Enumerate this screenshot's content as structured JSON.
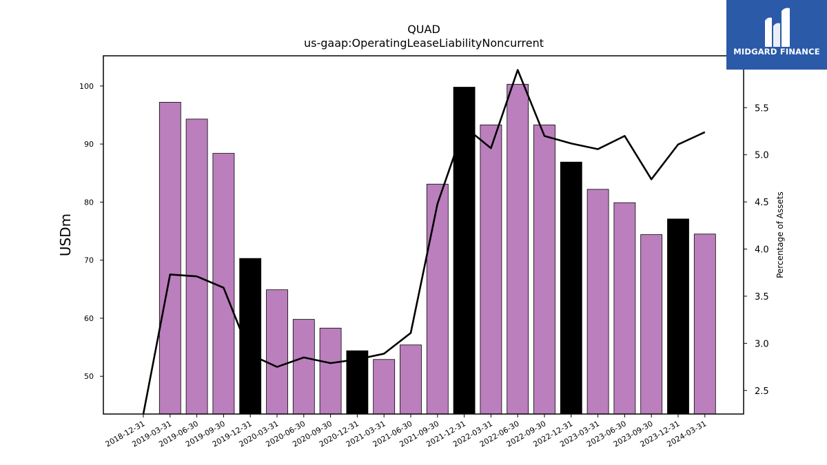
{
  "brand": {
    "name": "MIDGARD FINANCE",
    "bg_color": "#2a5aa8"
  },
  "chart_data": {
    "type": "bar",
    "title": "QUAD",
    "subtitle": "us-gaap:OperatingLeaseLiabilityNoncurrent",
    "ylabel": "USDm",
    "y2label": "Percentage of Assets",
    "ylim": [
      43.5,
      105.2
    ],
    "y2lim": [
      2.25,
      6.05
    ],
    "yticks": [
      50,
      60,
      70,
      80,
      90,
      100
    ],
    "y2ticks": [
      2.5,
      3.0,
      3.5,
      4.0,
      4.5,
      5.0,
      5.5
    ],
    "grid": false,
    "legend": "none",
    "colors": {
      "bar_regular": "#bb7fbd",
      "bar_year_end": "#000000",
      "line": "#000000"
    },
    "categories": [
      "2018-12-31",
      "2019-03-31",
      "2019-06-30",
      "2019-09-30",
      "2019-12-31",
      "2020-03-31",
      "2020-06-30",
      "2020-09-30",
      "2020-12-31",
      "2021-03-31",
      "2021-06-30",
      "2021-09-30",
      "2021-12-31",
      "2022-03-31",
      "2022-06-30",
      "2022-09-30",
      "2022-12-31",
      "2023-03-31",
      "2023-06-30",
      "2023-09-30",
      "2023-12-31",
      "2024-03-31"
    ],
    "series": [
      {
        "type": "bar",
        "values": [
          null,
          97.2,
          94.3,
          88.4,
          70.3,
          64.9,
          59.8,
          58.3,
          54.4,
          52.9,
          55.4,
          83.1,
          99.8,
          93.3,
          100.3,
          93.3,
          86.9,
          82.2,
          79.9,
          74.4,
          77.1,
          74.5
        ],
        "year_end": [
          true,
          false,
          false,
          false,
          true,
          false,
          false,
          false,
          true,
          false,
          false,
          false,
          true,
          false,
          false,
          false,
          true,
          false,
          false,
          false,
          true,
          false
        ]
      },
      {
        "type": "line",
        "axis": "right",
        "values": [
          2.25,
          3.73,
          3.71,
          3.59,
          2.88,
          2.75,
          2.85,
          2.79,
          2.83,
          2.89,
          3.11,
          4.48,
          5.3,
          5.07,
          5.9,
          5.2,
          5.12,
          5.06,
          5.2,
          4.74,
          5.11,
          5.24
        ]
      }
    ]
  }
}
